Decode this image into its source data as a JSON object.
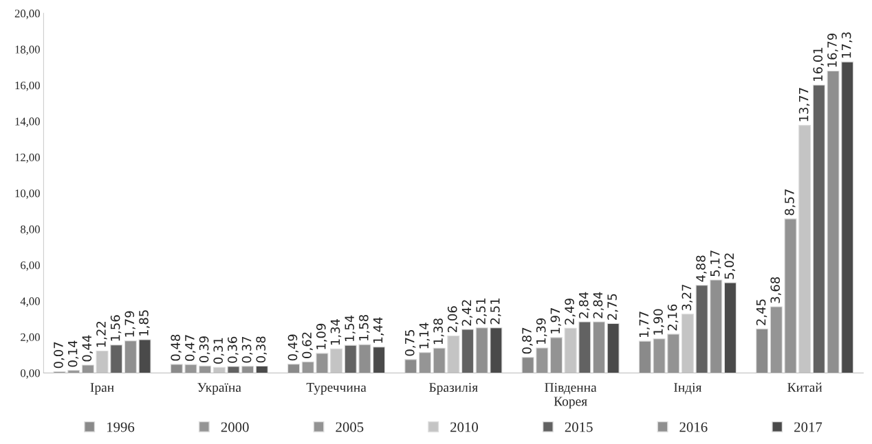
{
  "chart_data": {
    "type": "bar",
    "categories": [
      "Іран",
      "Україна",
      "Туреччина",
      "Бразилія",
      "Південна\nКорея",
      "Індія",
      "Китай"
    ],
    "series": [
      {
        "name": "1996",
        "color": "#8a8a8a",
        "values": [
          0.07,
          0.48,
          0.49,
          0.75,
          0.87,
          1.77,
          2.45
        ],
        "value_labels": [
          "0,07",
          "0,48",
          "0,49",
          "0,75",
          "0,87",
          "1,77",
          "2,45"
        ]
      },
      {
        "name": "2000",
        "color": "#959595",
        "values": [
          0.14,
          0.47,
          0.62,
          1.14,
          1.39,
          1.9,
          3.68
        ],
        "value_labels": [
          "0,14",
          "0,47",
          "0,62",
          "1,14",
          "1,39",
          "1,90",
          "3,68"
        ]
      },
      {
        "name": "2005",
        "color": "#939393",
        "values": [
          0.44,
          0.39,
          1.09,
          1.38,
          1.97,
          2.16,
          8.57
        ],
        "value_labels": [
          "0,44",
          "0,39",
          "1,09",
          "1,38",
          "1,97",
          "2,16",
          "8,57"
        ]
      },
      {
        "name": "2010",
        "color": "#c4c4c4",
        "values": [
          1.22,
          0.31,
          1.34,
          2.06,
          2.49,
          3.27,
          13.77
        ],
        "value_labels": [
          "1,22",
          "0,31",
          "1,34",
          "2,06",
          "2,49",
          "3,27",
          "13,77"
        ]
      },
      {
        "name": "2015",
        "color": "#626262",
        "values": [
          1.56,
          0.36,
          1.54,
          2.42,
          2.84,
          4.88,
          16.01
        ],
        "value_labels": [
          "1,56",
          "0,36",
          "1,54",
          "2,42",
          "2,84",
          "4,88",
          "16,01"
        ]
      },
      {
        "name": "2016",
        "color": "#8f8f8f",
        "values": [
          1.79,
          0.37,
          1.58,
          2.51,
          2.84,
          5.17,
          16.79
        ],
        "value_labels": [
          "1,79",
          "0,37",
          "1,58",
          "2,51",
          "2,84",
          "5,17",
          "16,79"
        ]
      },
      {
        "name": "2017",
        "color": "#4a4a4a",
        "values": [
          1.85,
          0.38,
          1.44,
          2.51,
          2.75,
          5.02,
          17.3
        ],
        "value_labels": [
          "1,85",
          "0,38",
          "1,44",
          "2,51",
          "2,75",
          "5,02",
          "17,3"
        ]
      }
    ],
    "ylim": [
      0,
      20
    ],
    "yticks": [
      {
        "value": 0,
        "label": "0,00"
      },
      {
        "value": 2,
        "label": "2,00"
      },
      {
        "value": 4,
        "label": "4,00"
      },
      {
        "value": 6,
        "label": "6,00"
      },
      {
        "value": 8,
        "label": "8,00"
      },
      {
        "value": 10,
        "label": "10,00"
      },
      {
        "value": 12,
        "label": "12,00"
      },
      {
        "value": 14,
        "label": "14,00"
      },
      {
        "value": 16,
        "label": "16,00"
      },
      {
        "value": 18,
        "label": "18,00"
      },
      {
        "value": 20,
        "label": "20,00"
      }
    ],
    "grid": false,
    "legend": "bottom"
  }
}
